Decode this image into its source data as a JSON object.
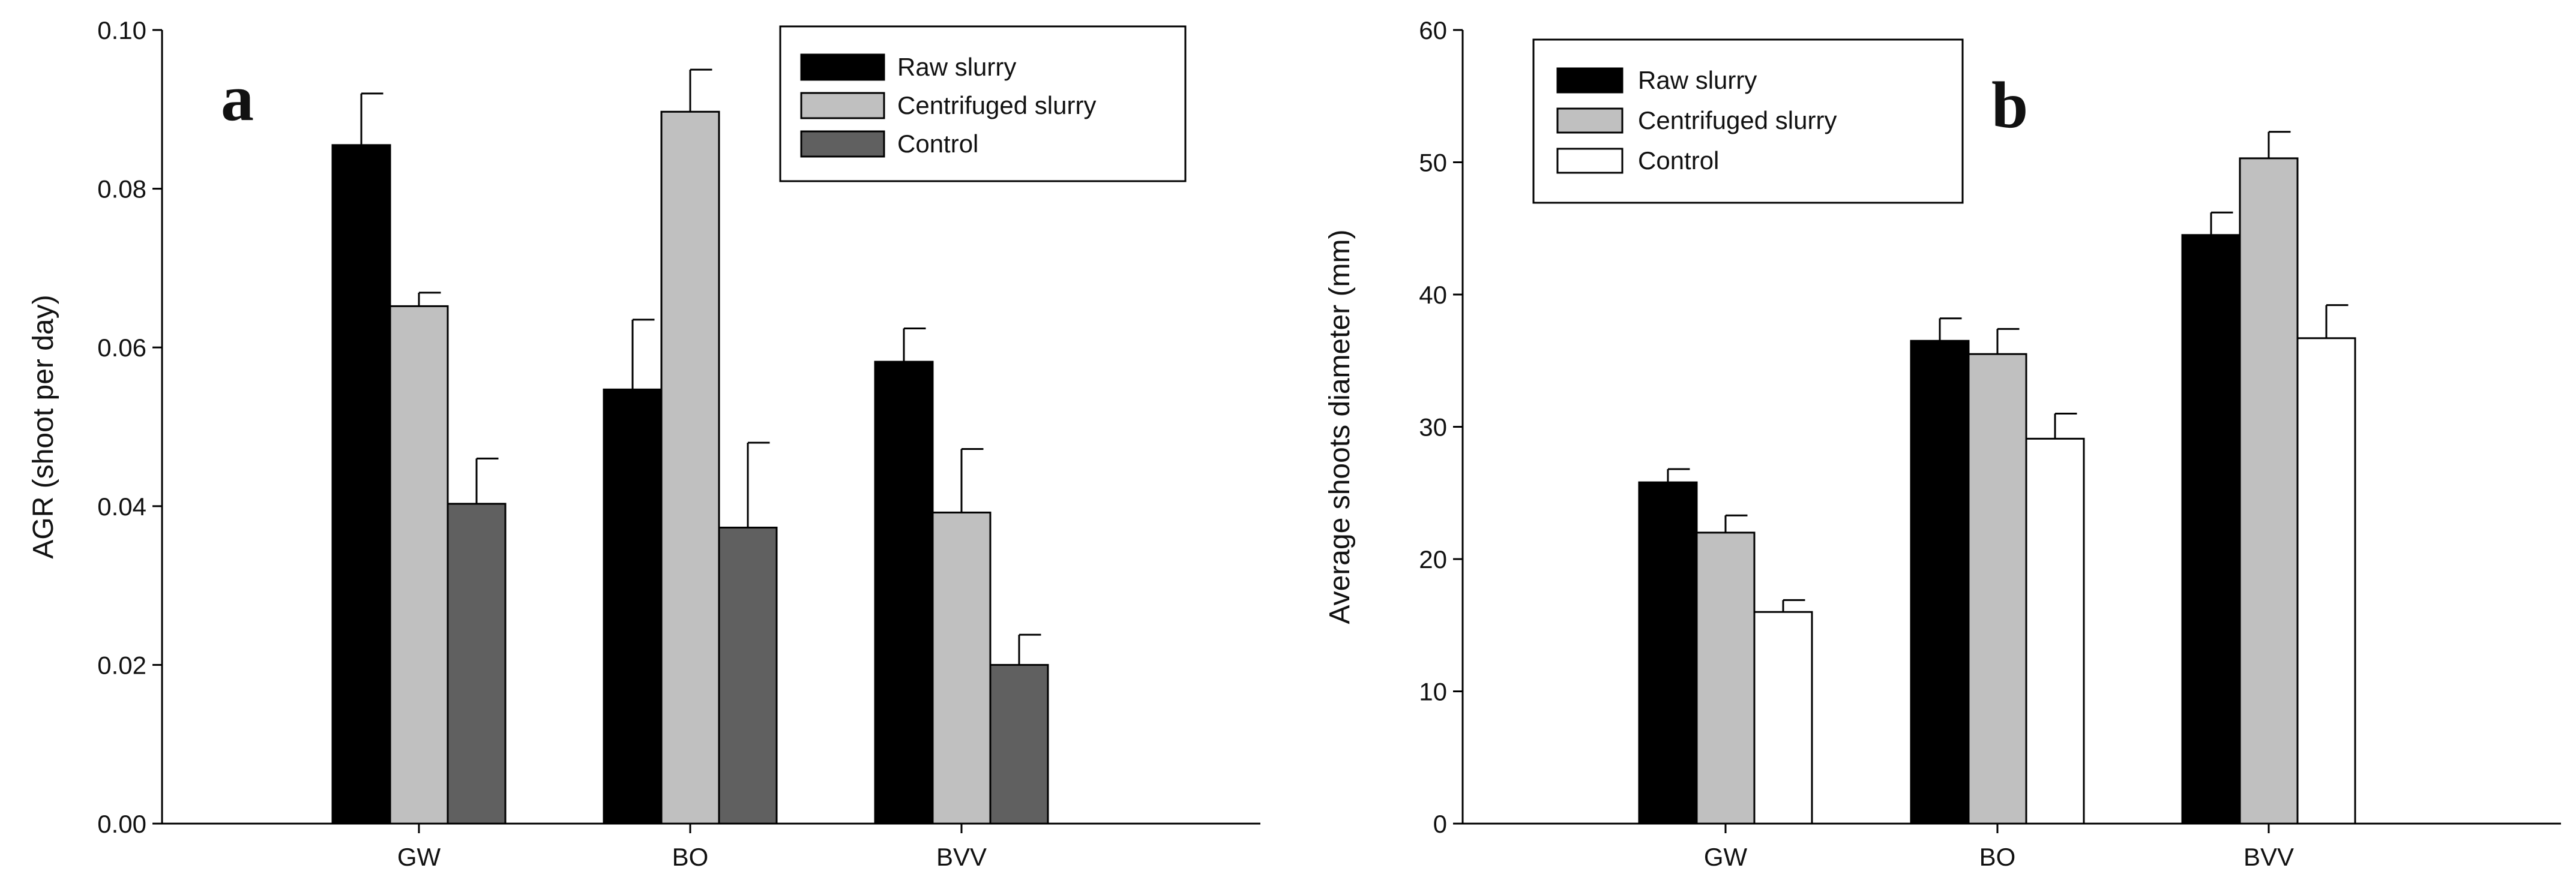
{
  "chart_data": [
    {
      "panel_letter": "a",
      "type": "bar",
      "categories": [
        "GW",
        "BO",
        "BVV"
      ],
      "series": [
        {
          "name": "Raw slurry",
          "color": "#000000",
          "values": [
            0.0855,
            0.0547,
            0.0582
          ],
          "errors": [
            0.0065,
            0.0088,
            0.0042
          ]
        },
        {
          "name": "Centrifuged slurry",
          "color": "#c0c0c0",
          "values": [
            0.0652,
            0.0897,
            0.0392
          ],
          "errors": [
            0.0017,
            0.0053,
            0.008
          ]
        },
        {
          "name": "Control",
          "color": "#606060",
          "values": [
            0.0403,
            0.0373,
            0.02
          ],
          "errors": [
            0.0057,
            0.0107,
            0.0038
          ]
        }
      ],
      "xlabel": "",
      "ylabel": "AGR (shoot per day)",
      "ylim": [
        0,
        0.1
      ],
      "yticks": [
        0,
        0.02,
        0.04,
        0.06,
        0.08,
        0.1
      ],
      "ytick_labels": [
        "0.00",
        "0.02",
        "0.04",
        "0.06",
        "0.08",
        "0.10"
      ],
      "legend_position": "top-right"
    },
    {
      "panel_letter": "b",
      "type": "bar",
      "categories": [
        "GW",
        "BO",
        "BVV"
      ],
      "series": [
        {
          "name": "Raw slurry",
          "color": "#000000",
          "values": [
            25.8,
            36.5,
            44.5
          ],
          "errors": [
            1.0,
            1.7,
            1.7
          ]
        },
        {
          "name": "Centrifuged slurry",
          "color": "#c0c0c0",
          "values": [
            22.0,
            35.5,
            50.3
          ],
          "errors": [
            1.3,
            1.9,
            2.0
          ]
        },
        {
          "name": "Control",
          "color": "#ffffff",
          "values": [
            16.0,
            29.1,
            36.7
          ],
          "errors": [
            0.9,
            1.9,
            2.5
          ]
        }
      ],
      "xlabel": "",
      "ylabel": "Average shoots diameter (mm)",
      "ylim": [
        0,
        60
      ],
      "yticks": [
        0,
        10,
        20,
        30,
        40,
        50,
        60
      ],
      "ytick_labels": [
        "0",
        "10",
        "20",
        "30",
        "40",
        "50",
        "60"
      ],
      "legend_position": "top-left"
    }
  ]
}
